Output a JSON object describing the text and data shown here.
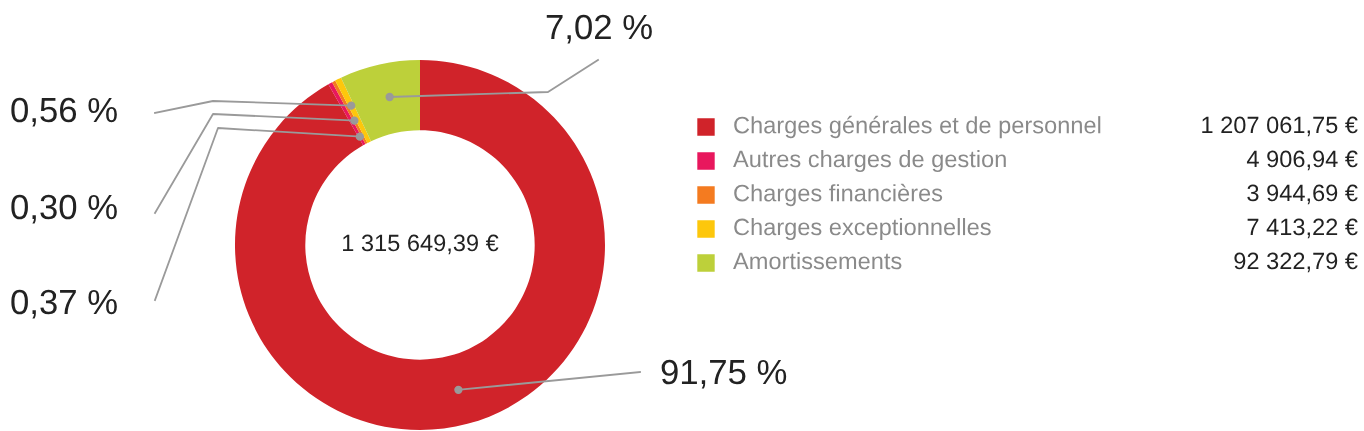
{
  "chart_data": {
    "type": "donut",
    "categories": [
      "Charges générales et de personnel",
      "Autres charges de gestion",
      "Charges financières",
      "Charges exceptionnelles",
      "Amortissements"
    ],
    "values": [
      91.75,
      0.37,
      0.3,
      0.56,
      7.02
    ],
    "colors": [
      "#d0232a",
      "#e8175d",
      "#f47b20",
      "#fdc70c",
      "#bdd03a"
    ],
    "value_labels": [
      "91,75 %",
      "0,37 %",
      "0,30 %",
      "0,56 %",
      "7,02 %"
    ],
    "annotations": [
      "1 315 649,39 €",
      "1 207 061,75 €",
      "4 906,94 €",
      "3 944,69 €",
      "7 413,22 €",
      "92 322,79 €"
    ],
    "legend": "right"
  }
}
